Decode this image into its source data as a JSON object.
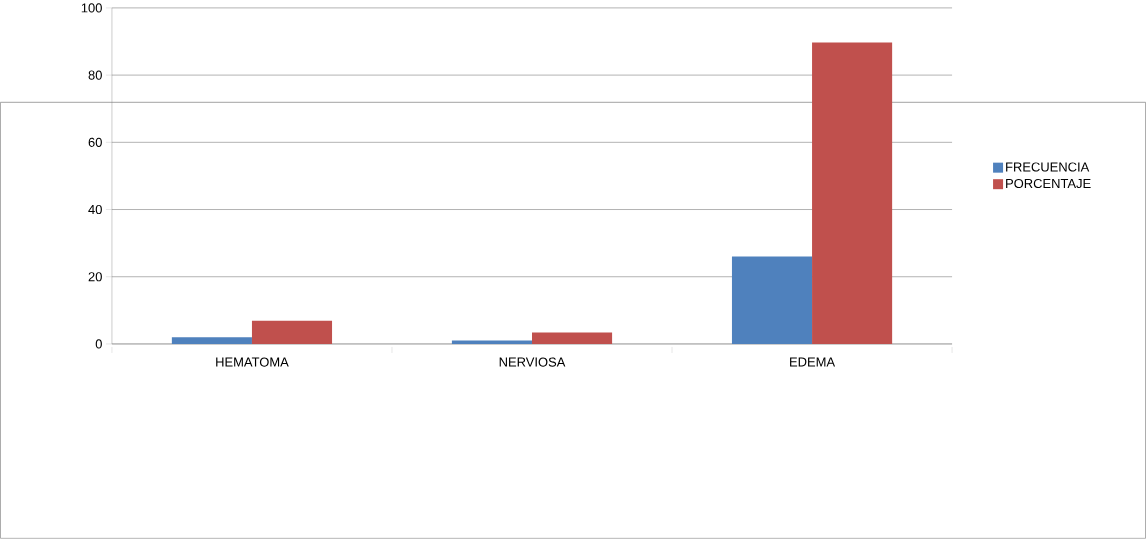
{
  "chart_data": {
    "type": "bar",
    "categories": [
      "HEMATOMA",
      "NERVIOSA",
      "EDEMA"
    ],
    "series": [
      {
        "name": "FRECUENCIA",
        "color": "#4f81bd",
        "values": [
          2,
          1,
          26
        ]
      },
      {
        "name": "PORCENTAJE",
        "color": "#c0504d",
        "values": [
          6.9,
          3.4,
          89.7
        ]
      }
    ],
    "ylim": [
      0,
      100
    ],
    "yticks": [
      0,
      20,
      40,
      60,
      80,
      100
    ],
    "grid": "y",
    "legend": "right"
  }
}
